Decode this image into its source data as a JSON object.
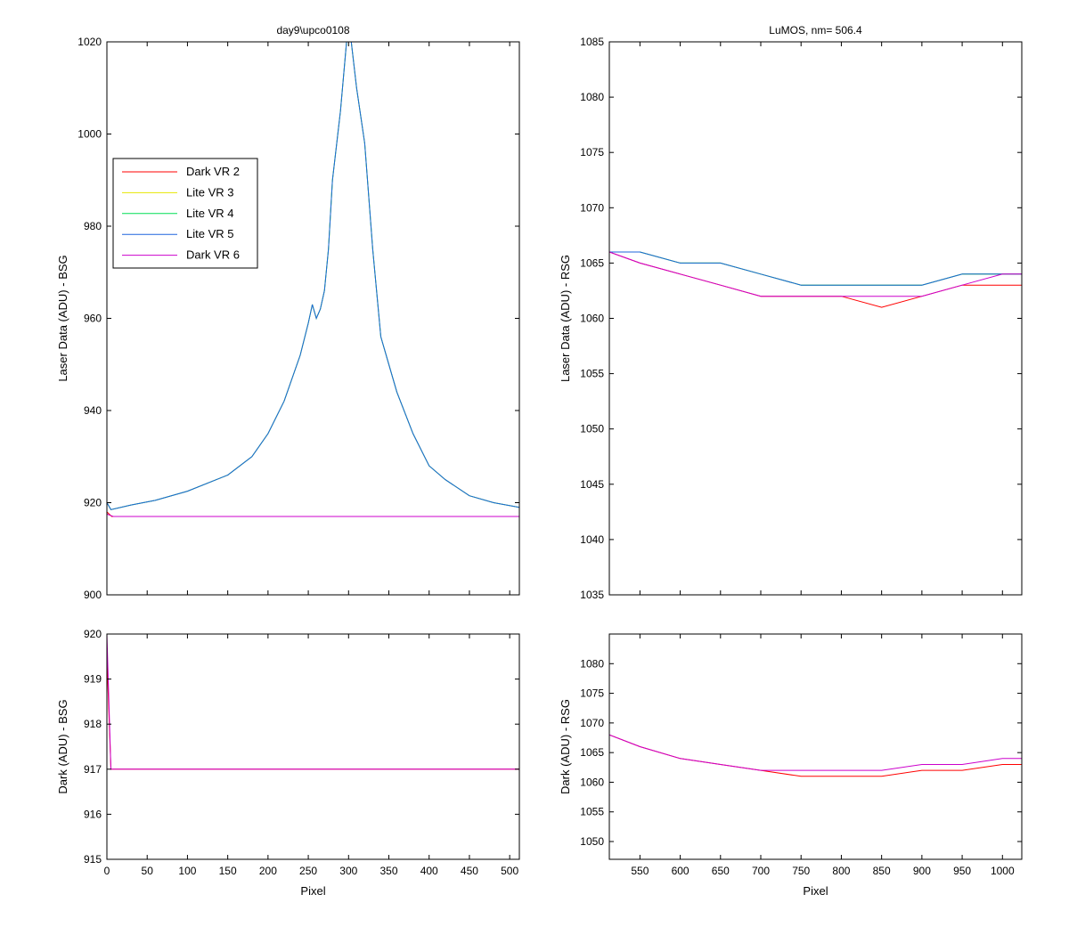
{
  "chart_data": [
    {
      "type": "line",
      "title": "day9\\upco0108",
      "xlabel": "",
      "ylabel": "Laser Data (ADU) - BSG",
      "xlim": [
        0,
        512
      ],
      "ylim": [
        900,
        1020
      ],
      "xticks": [
        0,
        50,
        100,
        150,
        200,
        250,
        300,
        350,
        400,
        450,
        500
      ],
      "yticks": [
        900,
        920,
        940,
        960,
        980,
        1000,
        1020
      ],
      "show_xtick_labels": false,
      "legend": {
        "placement": "left"
      },
      "series": [
        {
          "name": "Dark VR 2",
          "color": "#ff0000",
          "points": [
            [
              0,
              918
            ],
            [
              6,
              917
            ],
            [
              50,
              917
            ],
            [
              100,
              917
            ],
            [
              150,
              917
            ],
            [
              200,
              917
            ],
            [
              250,
              917
            ],
            [
              300,
              917
            ],
            [
              350,
              917
            ],
            [
              400,
              917
            ],
            [
              450,
              917
            ],
            [
              512,
              917
            ]
          ]
        },
        {
          "name": "Lite VR 3",
          "color": "#e6e600",
          "points": [
            [
              0,
              920
            ],
            [
              5,
              918.5
            ],
            [
              30,
              919.5
            ],
            [
              60,
              920.5
            ],
            [
              100,
              922.5
            ],
            [
              150,
              926
            ],
            [
              180,
              930
            ],
            [
              200,
              935
            ],
            [
              220,
              942
            ],
            [
              240,
              952
            ],
            [
              250,
              959
            ],
            [
              255,
              963
            ],
            [
              260,
              960
            ],
            [
              265,
              962
            ],
            [
              270,
              966
            ],
            [
              275,
              975
            ],
            [
              280,
              990
            ],
            [
              290,
              1005
            ],
            [
              300,
              1025
            ],
            [
              310,
              1010
            ],
            [
              320,
              998
            ],
            [
              330,
              975
            ],
            [
              340,
              956
            ],
            [
              350,
              950
            ],
            [
              360,
              944
            ],
            [
              380,
              935
            ],
            [
              400,
              928
            ],
            [
              420,
              925
            ],
            [
              450,
              921.5
            ],
            [
              480,
              920
            ],
            [
              512,
              919
            ]
          ]
        },
        {
          "name": "Lite VR 4",
          "color": "#00dd55",
          "points": [
            [
              0,
              920
            ],
            [
              5,
              918.5
            ],
            [
              30,
              919.5
            ],
            [
              60,
              920.5
            ],
            [
              100,
              922.5
            ],
            [
              150,
              926
            ],
            [
              180,
              930
            ],
            [
              200,
              935
            ],
            [
              220,
              942
            ],
            [
              240,
              952
            ],
            [
              250,
              959
            ],
            [
              255,
              963
            ],
            [
              260,
              960
            ],
            [
              265,
              962
            ],
            [
              270,
              966
            ],
            [
              275,
              975
            ],
            [
              280,
              990
            ],
            [
              290,
              1005
            ],
            [
              300,
              1025
            ],
            [
              310,
              1010
            ],
            [
              320,
              998
            ],
            [
              330,
              975
            ],
            [
              340,
              956
            ],
            [
              350,
              950
            ],
            [
              360,
              944
            ],
            [
              380,
              935
            ],
            [
              400,
              928
            ],
            [
              420,
              925
            ],
            [
              450,
              921.5
            ],
            [
              480,
              920
            ],
            [
              512,
              919
            ]
          ]
        },
        {
          "name": "Lite VR 5",
          "color": "#1f64dd",
          "points": [
            [
              0,
              920
            ],
            [
              5,
              918.5
            ],
            [
              30,
              919.5
            ],
            [
              60,
              920.5
            ],
            [
              100,
              922.5
            ],
            [
              150,
              926
            ],
            [
              180,
              930
            ],
            [
              200,
              935
            ],
            [
              220,
              942
            ],
            [
              240,
              952
            ],
            [
              250,
              959
            ],
            [
              255,
              963
            ],
            [
              260,
              960
            ],
            [
              265,
              962
            ],
            [
              270,
              966
            ],
            [
              275,
              975
            ],
            [
              280,
              990
            ],
            [
              290,
              1005
            ],
            [
              300,
              1025
            ],
            [
              310,
              1010
            ],
            [
              320,
              998
            ],
            [
              330,
              975
            ],
            [
              340,
              956
            ],
            [
              350,
              950
            ],
            [
              360,
              944
            ],
            [
              380,
              935
            ],
            [
              400,
              928
            ],
            [
              420,
              925
            ],
            [
              450,
              921.5
            ],
            [
              480,
              920
            ],
            [
              512,
              919
            ]
          ]
        },
        {
          "name": "Dark VR 6",
          "color": "#cc00cc",
          "points": [
            [
              0,
              917.5
            ],
            [
              8,
              917
            ],
            [
              100,
              917
            ],
            [
              200,
              917
            ],
            [
              300,
              917
            ],
            [
              400,
              917
            ],
            [
              512,
              917
            ]
          ]
        }
      ]
    },
    {
      "type": "line",
      "title": "LuMOS, nm= 506.4",
      "xlabel": "",
      "ylabel": "Laser Data (ADU) - RSG",
      "xlim": [
        512,
        1024
      ],
      "ylim": [
        1035,
        1085
      ],
      "xticks": [
        550,
        600,
        650,
        700,
        750,
        800,
        850,
        900,
        950,
        1000
      ],
      "yticks": [
        1035,
        1040,
        1045,
        1050,
        1055,
        1060,
        1065,
        1070,
        1075,
        1080,
        1085
      ],
      "show_xtick_labels": false,
      "series": [
        {
          "color": "#ff0000",
          "points": [
            [
              512,
              1066
            ],
            [
              550,
              1065
            ],
            [
              600,
              1064
            ],
            [
              650,
              1063
            ],
            [
              700,
              1062
            ],
            [
              750,
              1062
            ],
            [
              800,
              1062
            ],
            [
              850,
              1061
            ],
            [
              900,
              1062
            ],
            [
              950,
              1063
            ],
            [
              1000,
              1063
            ],
            [
              1024,
              1063
            ]
          ]
        },
        {
          "color": "#e6e600",
          "points": [
            [
              512,
              1066
            ],
            [
              550,
              1066
            ],
            [
              600,
              1065
            ],
            [
              650,
              1065
            ],
            [
              700,
              1064
            ],
            [
              750,
              1063
            ],
            [
              800,
              1063
            ],
            [
              850,
              1063
            ],
            [
              900,
              1063
            ],
            [
              950,
              1064
            ],
            [
              1000,
              1064
            ],
            [
              1024,
              1064
            ]
          ]
        },
        {
          "color": "#00dd55",
          "points": [
            [
              512,
              1066
            ],
            [
              550,
              1066
            ],
            [
              600,
              1065
            ],
            [
              650,
              1065
            ],
            [
              700,
              1064
            ],
            [
              750,
              1063
            ],
            [
              800,
              1063
            ],
            [
              850,
              1063
            ],
            [
              900,
              1063
            ],
            [
              950,
              1064
            ],
            [
              1000,
              1064
            ],
            [
              1024,
              1064
            ]
          ]
        },
        {
          "color": "#1f64dd",
          "points": [
            [
              512,
              1066
            ],
            [
              550,
              1066
            ],
            [
              600,
              1065
            ],
            [
              650,
              1065
            ],
            [
              700,
              1064
            ],
            [
              750,
              1063
            ],
            [
              800,
              1063
            ],
            [
              850,
              1063
            ],
            [
              900,
              1063
            ],
            [
              950,
              1064
            ],
            [
              1000,
              1064
            ],
            [
              1024,
              1064
            ]
          ]
        },
        {
          "color": "#cc00cc",
          "points": [
            [
              512,
              1066
            ],
            [
              550,
              1065
            ],
            [
              600,
              1064
            ],
            [
              650,
              1063
            ],
            [
              700,
              1062
            ],
            [
              750,
              1062
            ],
            [
              800,
              1062
            ],
            [
              850,
              1062
            ],
            [
              900,
              1062
            ],
            [
              950,
              1063
            ],
            [
              1000,
              1064
            ],
            [
              1024,
              1064
            ]
          ]
        }
      ]
    },
    {
      "type": "line",
      "title": "",
      "xlabel": "Pixel",
      "ylabel": "Dark (ADU) - BSG",
      "xlim": [
        0,
        512
      ],
      "ylim": [
        915,
        920
      ],
      "xticks": [
        0,
        50,
        100,
        150,
        200,
        250,
        300,
        350,
        400,
        450,
        500
      ],
      "yticks": [
        915,
        916,
        917,
        918,
        919,
        920
      ],
      "show_xtick_labels": true,
      "series": [
        {
          "color": "#ff0000",
          "points": [
            [
              0,
              919.5
            ],
            [
              5,
              917
            ],
            [
              100,
              917
            ],
            [
              200,
              917
            ],
            [
              300,
              917
            ],
            [
              400,
              917
            ],
            [
              512,
              917
            ]
          ]
        },
        {
          "color": "#cc00cc",
          "points": [
            [
              0,
              920
            ],
            [
              5,
              917
            ],
            [
              100,
              917
            ],
            [
              200,
              917
            ],
            [
              300,
              917
            ],
            [
              400,
              917
            ],
            [
              512,
              917
            ]
          ]
        }
      ]
    },
    {
      "type": "line",
      "title": "",
      "xlabel": "Pixel",
      "ylabel": "Dark (ADU) - RSG",
      "xlim": [
        512,
        1024
      ],
      "ylim": [
        1047,
        1085
      ],
      "xticks": [
        550,
        600,
        650,
        700,
        750,
        800,
        850,
        900,
        950,
        1000
      ],
      "yticks": [
        1050,
        1055,
        1060,
        1065,
        1070,
        1075,
        1080
      ],
      "show_xtick_labels": true,
      "series": [
        {
          "color": "#ff0000",
          "points": [
            [
              512,
              1068
            ],
            [
              550,
              1066
            ],
            [
              600,
              1064
            ],
            [
              650,
              1063
            ],
            [
              700,
              1062
            ],
            [
              750,
              1061
            ],
            [
              800,
              1061
            ],
            [
              850,
              1061
            ],
            [
              900,
              1062
            ],
            [
              950,
              1062
            ],
            [
              1000,
              1063
            ],
            [
              1024,
              1063
            ]
          ]
        },
        {
          "color": "#cc00cc",
          "points": [
            [
              512,
              1068
            ],
            [
              550,
              1066
            ],
            [
              600,
              1064
            ],
            [
              650,
              1063
            ],
            [
              700,
              1062
            ],
            [
              750,
              1062
            ],
            [
              800,
              1062
            ],
            [
              850,
              1062
            ],
            [
              900,
              1063
            ],
            [
              950,
              1063
            ],
            [
              1000,
              1064
            ],
            [
              1024,
              1064
            ]
          ]
        }
      ]
    }
  ]
}
